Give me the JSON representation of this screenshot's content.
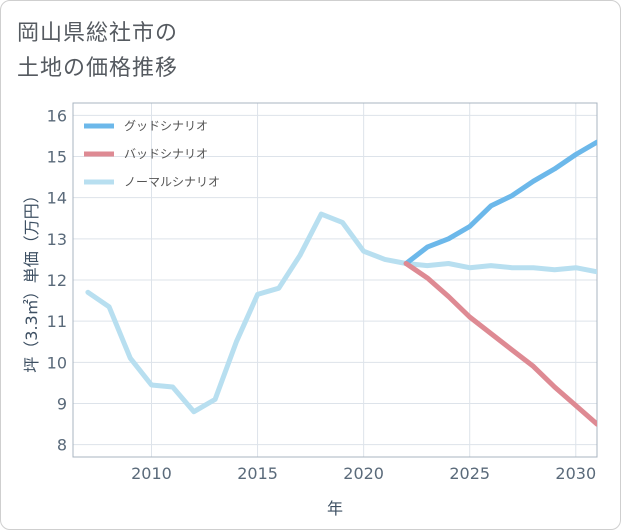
{
  "title_line1": "岡山県総社市の",
  "title_line2": "土地の価格推移",
  "chart_data": {
    "type": "line",
    "xlabel": "年",
    "ylabel": "坪（3.3㎡）単価（万円）",
    "xlim": [
      2006.3,
      2031
    ],
    "ylim": [
      7.7,
      16.3
    ],
    "xticks": [
      2010,
      2015,
      2020,
      2025,
      2030
    ],
    "yticks": [
      8,
      9,
      10,
      11,
      12,
      13,
      14,
      15,
      16
    ],
    "legend_position": "top-left",
    "series": [
      {
        "name": "グッドシナリオ",
        "color": "#6cb8ea",
        "x": [
          2022,
          2023,
          2024,
          2025,
          2026,
          2027,
          2028,
          2029,
          2030,
          2031
        ],
        "y": [
          12.4,
          12.8,
          13.0,
          13.3,
          13.8,
          14.05,
          14.4,
          14.7,
          15.05,
          15.35
        ]
      },
      {
        "name": "バッドシナリオ",
        "color": "#de8a93",
        "x": [
          2022,
          2023,
          2024,
          2025,
          2026,
          2027,
          2028,
          2029,
          2030,
          2031
        ],
        "y": [
          12.4,
          12.05,
          11.6,
          11.1,
          10.7,
          10.3,
          9.9,
          9.4,
          8.95,
          8.5
        ]
      },
      {
        "name": "ノーマルシナリオ",
        "color": "#b8dff0",
        "x": [
          2007,
          2008,
          2009,
          2010,
          2011,
          2012,
          2013,
          2014,
          2015,
          2016,
          2017,
          2018,
          2019,
          2020,
          2021,
          2022,
          2023,
          2024,
          2025,
          2026,
          2027,
          2028,
          2029,
          2030,
          2031
        ],
        "y": [
          11.7,
          11.35,
          10.1,
          9.45,
          9.4,
          8.8,
          9.1,
          10.5,
          11.65,
          11.8,
          12.6,
          13.6,
          13.4,
          12.7,
          12.5,
          12.4,
          12.35,
          12.4,
          12.3,
          12.35,
          12.3,
          12.3,
          12.25,
          12.3,
          12.2
        ]
      }
    ]
  }
}
